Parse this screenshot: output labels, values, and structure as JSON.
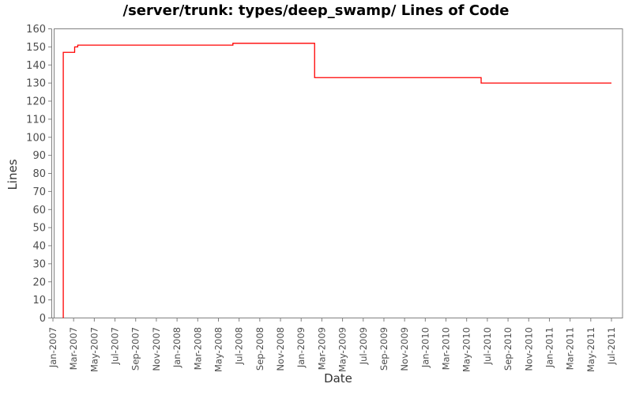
{
  "chart_data": {
    "type": "line",
    "subtype": "step",
    "title": "/server/trunk: types/deep_swamp/ Lines of Code",
    "xlabel": "Date",
    "ylabel": "Lines",
    "ylim": [
      0,
      160
    ],
    "y_ticks": [
      0,
      10,
      20,
      30,
      40,
      50,
      60,
      70,
      80,
      90,
      100,
      110,
      120,
      130,
      140,
      150,
      160
    ],
    "x_ticks": [
      "Jan-2007",
      "Mar-2007",
      "May-2007",
      "Jul-2007",
      "Sep-2007",
      "Nov-2007",
      "Jan-2008",
      "Mar-2008",
      "May-2008",
      "Jul-2008",
      "Sep-2008",
      "Nov-2008",
      "Jan-2009",
      "Mar-2009",
      "May-2009",
      "Jul-2009",
      "Sep-2009",
      "Nov-2009",
      "Jan-2010",
      "Mar-2010",
      "May-2010",
      "Jul-2010",
      "Sep-2010",
      "Nov-2010",
      "Jan-2011",
      "Mar-2011",
      "May-2011",
      "Jul-2011"
    ],
    "x_axis_start_label": "Jan-2007",
    "x_axis_months_per_tick": 2,
    "grid": "off",
    "legend": "none",
    "series": [
      {
        "name": "Lines of Code",
        "color": "#ff0000",
        "step": true,
        "points": [
          {
            "date": "Feb-2007",
            "month_index": 1.0,
            "value": 0
          },
          {
            "date": "Feb-2007",
            "month_index": 1.0,
            "value": 147
          },
          {
            "date": "Mar-2007",
            "month_index": 2.1,
            "value": 150
          },
          {
            "date": "Mar-2007",
            "month_index": 2.4,
            "value": 151
          },
          {
            "date": "Jun-2008",
            "month_index": 17.4,
            "value": 152
          },
          {
            "date": "Feb-2009",
            "month_index": 25.3,
            "value": 133
          },
          {
            "date": "Jun-2010",
            "month_index": 41.4,
            "value": 130
          },
          {
            "date": "Jul-2011",
            "month_index": 54.0,
            "value": 130
          }
        ]
      }
    ],
    "colors": {
      "axis": "#808080",
      "tick_label": "#4d4d4d",
      "background": "#ffffff"
    }
  }
}
